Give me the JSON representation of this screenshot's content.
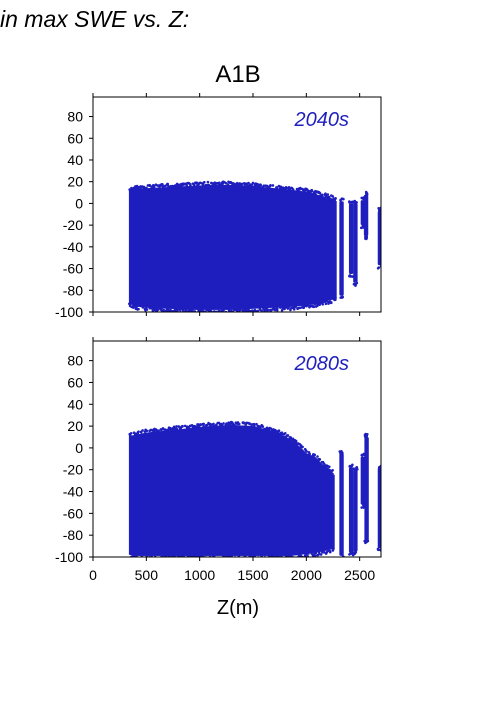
{
  "page": {
    "heading": "in max SWE vs. Z:"
  },
  "chart_data": {
    "type": "scatter",
    "title": "A1B",
    "xlabel": "Z(m)",
    "ylabel": "",
    "xlim": [
      0,
      2700
    ],
    "x_ticks": [
      "0",
      "500",
      "1000",
      "1500",
      "2000",
      "2500"
    ],
    "x_tick_values": [
      0,
      500,
      1000,
      1500,
      2000,
      2500
    ],
    "y_ticks": [
      "80",
      "60",
      "40",
      "20",
      "0",
      "-20",
      "-40",
      "-60",
      "-80",
      "-100"
    ],
    "y_tick_values": [
      80,
      60,
      40,
      20,
      0,
      -20,
      -40,
      -60,
      -80,
      -100
    ],
    "ylim": [
      -100,
      98
    ],
    "marker_color": "#1f1fbf",
    "panels": [
      {
        "label": "2040s",
        "envelope": {
          "x": [
            345,
            400,
            500,
            700,
            900,
            1100,
            1300,
            1500,
            1700,
            1900,
            2050,
            2100,
            2230,
            2280
          ],
          "ymax": [
            12,
            13,
            14,
            15,
            16,
            17,
            17,
            16,
            14,
            12,
            10,
            8,
            5,
            2
          ],
          "ymin": [
            -92,
            -95,
            -96,
            -97,
            -98,
            -98,
            -98,
            -97,
            -96,
            -95,
            -93,
            -92,
            -89,
            -87
          ]
        },
        "spikes": [
          {
            "x": 2330,
            "ymin": -85,
            "ymax": 2
          },
          {
            "x": 2420,
            "ymin": -65,
            "ymax": 0
          },
          {
            "x": 2460,
            "ymin": -73,
            "ymax": 0
          },
          {
            "x": 2530,
            "ymin": -20,
            "ymax": 3
          },
          {
            "x": 2560,
            "ymin": -30,
            "ymax": 8
          },
          {
            "x": 2690,
            "ymin": -57,
            "ymax": -7
          }
        ]
      },
      {
        "label": "2080s",
        "envelope": {
          "x": [
            345,
            400,
            500,
            700,
            900,
            1100,
            1300,
            1500,
            1700,
            1850,
            1950,
            2000,
            2080,
            2150,
            2230,
            2260
          ],
          "ymax": [
            11,
            12,
            14,
            16,
            18,
            20,
            21,
            20,
            15,
            8,
            0,
            -5,
            -8,
            -15,
            -20,
            -25
          ],
          "ymin": [
            -98,
            -99,
            -99,
            -99,
            -99,
            -99,
            -99,
            -99,
            -99,
            -99,
            -98,
            -97,
            -96,
            -95,
            -93,
            -92
          ]
        },
        "spikes": [
          {
            "x": 2330,
            "ymin": -99,
            "ymax": -5
          },
          {
            "x": 2420,
            "ymin": -96,
            "ymax": -18
          },
          {
            "x": 2460,
            "ymin": -95,
            "ymax": -20
          },
          {
            "x": 2530,
            "ymin": -52,
            "ymax": -8
          },
          {
            "x": 2565,
            "ymin": -85,
            "ymax": 10
          },
          {
            "x": 2690,
            "ymin": -92,
            "ymax": -18
          }
        ]
      }
    ]
  }
}
